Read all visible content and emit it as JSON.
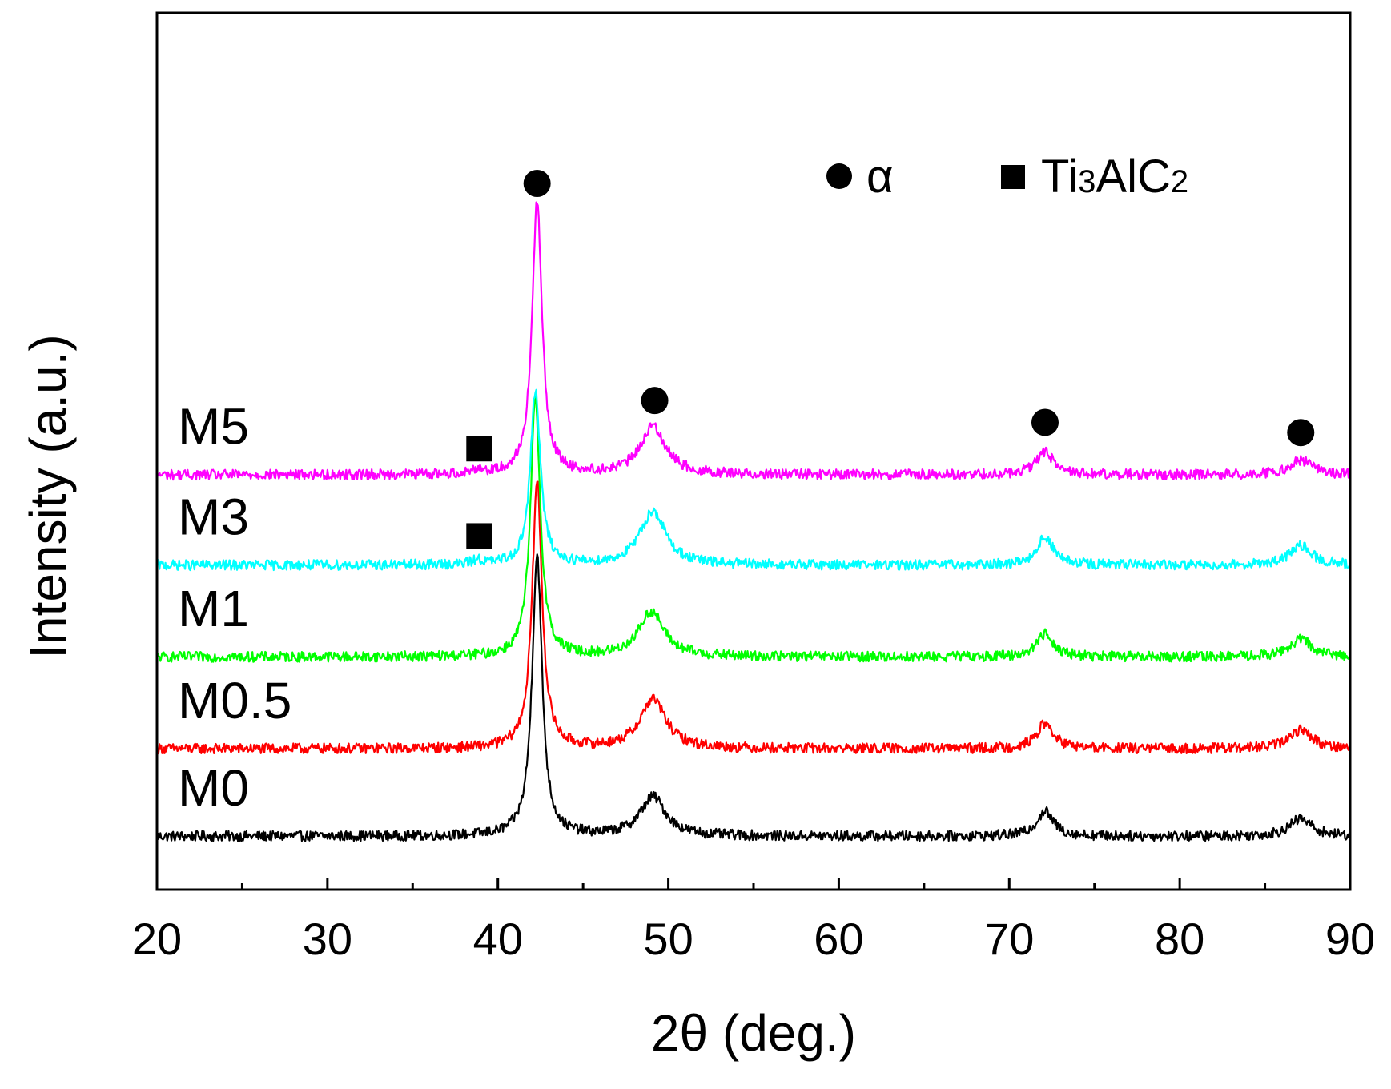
{
  "chart_data": {
    "type": "line",
    "xlabel": "2θ (deg.)",
    "ylabel": "Intensity (a.u.)",
    "xlim": [
      20,
      90
    ],
    "xticks": [
      20,
      30,
      40,
      50,
      60,
      70,
      80,
      90
    ],
    "xminor_ticks": [
      25,
      35,
      45,
      55,
      65,
      75,
      85
    ],
    "yticks_shown": false,
    "grid": false,
    "series": [
      {
        "name": "M0",
        "color": "#000000",
        "offset": 0,
        "baseline": 0.02,
        "peaks": [
          {
            "x": 42.3,
            "height": 1.93,
            "width": 0.35
          },
          {
            "x": 49.1,
            "height": 0.27,
            "width": 0.9
          },
          {
            "x": 72.1,
            "height": 0.17,
            "width": 0.6
          },
          {
            "x": 87.1,
            "height": 0.12,
            "width": 0.8
          }
        ]
      },
      {
        "name": "M0.5",
        "color": "#ff0000",
        "offset": 0.6,
        "baseline": 0.02,
        "peaks": [
          {
            "x": 42.3,
            "height": 1.83,
            "width": 0.35
          },
          {
            "x": 49.1,
            "height": 0.34,
            "width": 0.9
          },
          {
            "x": 72.1,
            "height": 0.17,
            "width": 0.6
          },
          {
            "x": 87.1,
            "height": 0.13,
            "width": 0.8
          }
        ]
      },
      {
        "name": "M1",
        "color": "#00ff00",
        "offset": 1.23,
        "baseline": 0.02,
        "peaks": [
          {
            "x": 42.2,
            "height": 1.76,
            "width": 0.35
          },
          {
            "x": 49.0,
            "height": 0.31,
            "width": 0.9
          },
          {
            "x": 72.1,
            "height": 0.16,
            "width": 0.6
          },
          {
            "x": 87.1,
            "height": 0.12,
            "width": 0.8
          }
        ]
      },
      {
        "name": "M3",
        "color": "#00ffff",
        "offset": 1.86,
        "baseline": 0.02,
        "peaks": [
          {
            "x": 38.8,
            "height": 0.03,
            "width": 0.35
          },
          {
            "x": 42.2,
            "height": 1.2,
            "width": 0.35
          },
          {
            "x": 49.1,
            "height": 0.37,
            "width": 0.9
          },
          {
            "x": 72.1,
            "height": 0.19,
            "width": 0.6
          },
          {
            "x": 87.1,
            "height": 0.13,
            "width": 0.8
          }
        ]
      },
      {
        "name": "M5",
        "color": "#ff00ff",
        "offset": 2.48,
        "baseline": 0.02,
        "peaks": [
          {
            "x": 38.8,
            "height": 0.03,
            "width": 0.35
          },
          {
            "x": 42.3,
            "height": 1.87,
            "width": 0.35
          },
          {
            "x": 49.1,
            "height": 0.33,
            "width": 0.9
          },
          {
            "x": 72.1,
            "height": 0.16,
            "width": 0.6
          },
          {
            "x": 87.1,
            "height": 0.1,
            "width": 0.8
          }
        ]
      }
    ],
    "markers": [
      {
        "symbol": "circle",
        "phase": "α",
        "x": 42.3,
        "y": 4.5
      },
      {
        "symbol": "circle",
        "phase": "α",
        "x": 49.2,
        "y": 3.01
      },
      {
        "symbol": "circle",
        "phase": "α",
        "x": 72.1,
        "y": 2.86
      },
      {
        "symbol": "circle",
        "phase": "α",
        "x": 87.1,
        "y": 2.79
      },
      {
        "symbol": "square",
        "phase": "Ti3AlC2",
        "x": 38.9,
        "y": 2.68
      },
      {
        "symbol": "square",
        "phase": "Ti3AlC2",
        "x": 38.9,
        "y": 2.08
      }
    ],
    "legend": {
      "placement": "top-right",
      "items": [
        {
          "symbol": "circle",
          "label": "α"
        },
        {
          "symbol": "square",
          "label": "Ti",
          "sub": "3",
          "label2": "AlC",
          "sub2": "2"
        }
      ]
    }
  }
}
